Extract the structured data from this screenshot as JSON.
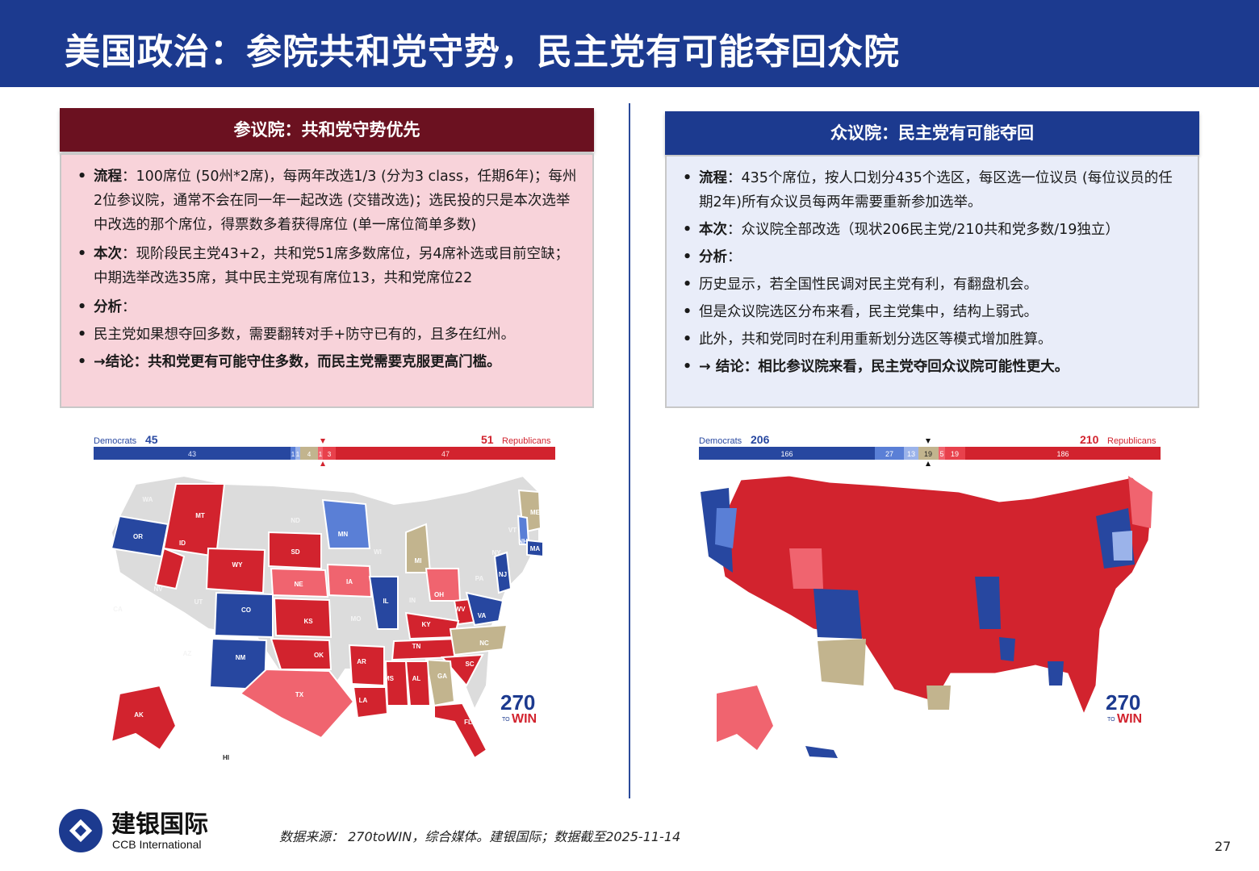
{
  "title": "美国政治：参院共和党守势，民主党有可能夺回众院",
  "senate": {
    "header": "参议院：共和党守势优先",
    "bullets": [
      {
        "label": "流程",
        "text": "：100席位 (50州*2席)，每两年改选1/3 (分为3 class，任期6年)；每州2位参议院，通常不会在同一年一起改选 (交错改选)；选民投的只是本次选举中改选的那个席位，得票数多着获得席位 (单一席位简单多数)"
      },
      {
        "label": "本次",
        "text": "：现阶段民主党43+2，共和党51席多数席位，另4席补选或目前空缺；中期选举改选35席，其中民主党现有席位13，共和党席位22"
      },
      {
        "label": "分析",
        "text": "："
      },
      {
        "label": "",
        "text": "民主党如果想夺回多数，需要翻转对手+防守已有的，且多在红州。"
      },
      {
        "label": "→结论：共和党更有可能守住多数，而民主党需要克服更高门槛。",
        "text": ""
      }
    ],
    "bar": {
      "dem_label": "Democrats",
      "dem_total": "45",
      "rep_label": "Republicans",
      "rep_total": "51",
      "segments": [
        "43",
        "1",
        "1",
        "4",
        "1",
        "3",
        "47"
      ]
    },
    "states": [
      "WA",
      "MT",
      "ND",
      "MN",
      "ME",
      "OR",
      "ID",
      "SD",
      "WI",
      "MI",
      "VT",
      "NH",
      "NY",
      "WY",
      "MA",
      "NE",
      "IA",
      "PA",
      "NV",
      "UT",
      "CO",
      "IL",
      "IN",
      "OH",
      "NJ",
      "CA",
      "KS",
      "MO",
      "WV",
      "VA",
      "KY",
      "AZ",
      "NM",
      "OK",
      "TN",
      "NC",
      "AR",
      "SC",
      "MS",
      "AL",
      "GA",
      "TX",
      "LA",
      "AK",
      "FL",
      "HI"
    ]
  },
  "house": {
    "header": "众议院：民主党有可能夺回",
    "bullets": [
      {
        "label": "流程",
        "text": "：435个席位，按人口划分435个选区，每区选一位议员 (每位议员的任期2年)所有众议员每两年需要重新参加选举。"
      },
      {
        "label": "本次",
        "text": "：众议院全部改选（现状206民主党/210共和党多数/19独立）"
      },
      {
        "label": "分析",
        "text": "："
      },
      {
        "label": "",
        "text": "历史显示，若全国性民调对民主党有利，有翻盘机会。"
      },
      {
        "label": "",
        "text": "但是众议院选区分布来看，民主党集中，结构上弱式。"
      },
      {
        "label": "",
        "text": "此外，共和党同时在利用重新划分选区等模式增加胜算。"
      },
      {
        "label": "→ 结论：相比参议院来看，民主党夺回众议院可能性更大。",
        "text": ""
      }
    ],
    "bar": {
      "dem_label": "Democrats",
      "dem_total": "206",
      "rep_label": "Republicans",
      "rep_total": "210",
      "segments": [
        "166",
        "27",
        "13",
        "19",
        "5",
        "19",
        "186"
      ]
    }
  },
  "logo": {
    "name_cn": "建银国际",
    "name_en": "CCB International",
    "number": "270",
    "word_to": "TO",
    "word_win": "WIN"
  },
  "colors": {
    "dem": "#2747a0",
    "dem_light": "#5a7fd6",
    "dem_lean": "#9bb3ea",
    "tossup": "#c2b48e",
    "rep": "#d2232e",
    "rep_light": "#f0646f",
    "nomap": "#dcdcdc",
    "title_bg": "#1c3a8f",
    "senate_head": "#6b1120"
  },
  "source": "数据来源：  270toWIN，综合媒体。建银国际；数据截至2025-11-14",
  "page": "27"
}
